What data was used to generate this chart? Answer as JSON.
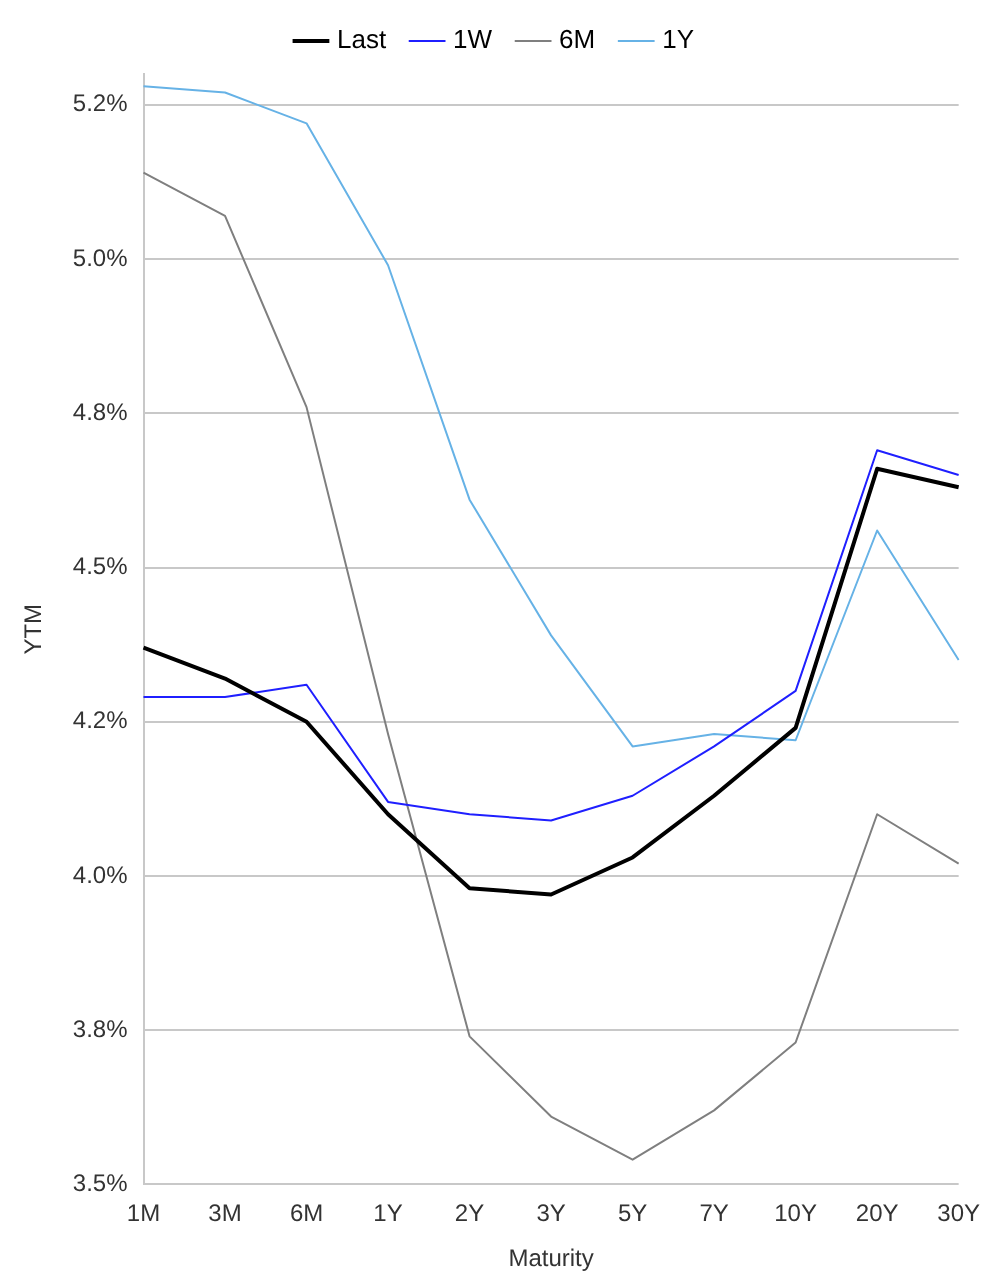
{
  "chart_data": {
    "type": "line",
    "xlabel": "Maturity",
    "ylabel": "YTM",
    "categories": [
      "1M",
      "3M",
      "6M",
      "1Y",
      "2Y",
      "3Y",
      "5Y",
      "7Y",
      "10Y",
      "20Y",
      "30Y"
    ],
    "series": [
      {
        "name": "Last",
        "color": "#000000",
        "values": [
          4.37,
          4.32,
          4.25,
          4.1,
          3.98,
          3.97,
          4.03,
          4.13,
          4.24,
          4.66,
          4.63
        ]
      },
      {
        "name": "1W",
        "color": "#1f1fff",
        "values": [
          4.29,
          4.29,
          4.31,
          4.12,
          4.1,
          4.09,
          4.13,
          4.21,
          4.3,
          4.69,
          4.65
        ]
      },
      {
        "name": "6M",
        "color": "#7f7f7f",
        "values": [
          5.14,
          5.07,
          4.76,
          4.23,
          3.74,
          3.61,
          3.54,
          3.62,
          3.73,
          4.1,
          4.02
        ]
      },
      {
        "name": "1Y",
        "color": "#66b2e6",
        "values": [
          5.28,
          5.27,
          5.22,
          4.99,
          4.61,
          4.39,
          4.21,
          4.23,
          4.22,
          4.56,
          4.35
        ]
      }
    ],
    "ylim": [
      3.5,
      5.3
    ],
    "yticks": [
      {
        "value": 3.5,
        "label": "3.5%"
      },
      {
        "value": 3.75,
        "label": "3.8%"
      },
      {
        "value": 4.0,
        "label": "4.0%"
      },
      {
        "value": 4.25,
        "label": "4.2%"
      },
      {
        "value": 4.5,
        "label": "4.5%"
      },
      {
        "value": 4.75,
        "label": "4.8%"
      },
      {
        "value": 5.0,
        "label": "5.0%"
      },
      {
        "value": 5.25,
        "label": "5.2%"
      }
    ],
    "grid": "y",
    "legend": "top",
    "marker": "none",
    "line_style": "solid"
  }
}
